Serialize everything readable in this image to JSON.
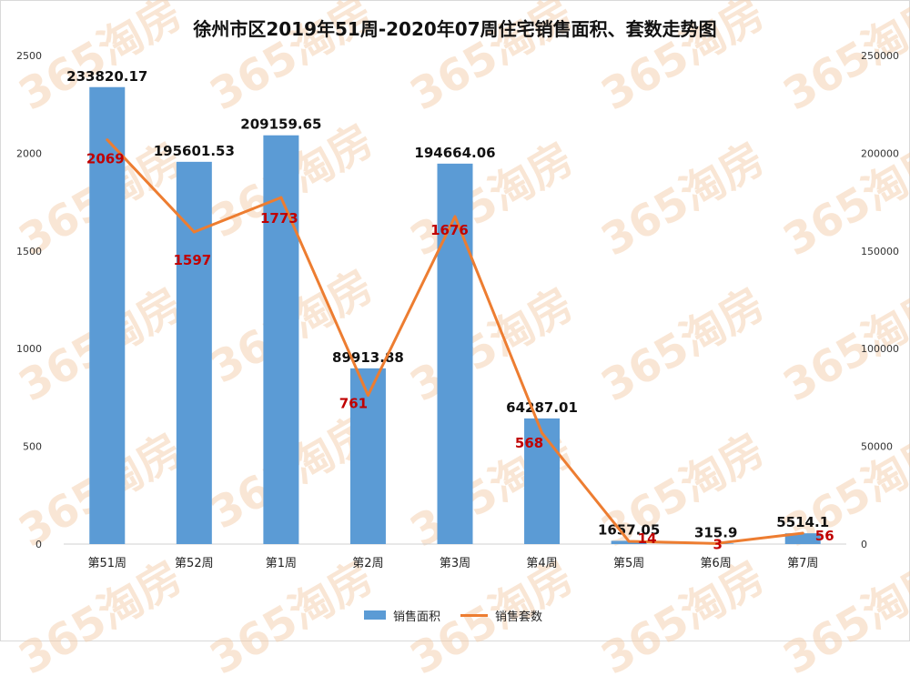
{
  "title": "徐州市区2019年51周-2020年07周住宅销售面积、套数走势图",
  "watermark": "365淘房",
  "colors": {
    "bar": "#5b9bd5",
    "line": "#ed7d31",
    "line_label": "#c00000"
  },
  "chart_data": {
    "type": "bar+line",
    "categories": [
      "第51周",
      "第52周",
      "第1周",
      "第2周",
      "第3周",
      "第4周",
      "第5周",
      "第6周",
      "第7周"
    ],
    "series": [
      {
        "name": "销售面积",
        "type": "bar",
        "axis": "right",
        "values": [
          233820.17,
          195601.53,
          209159.65,
          89913.88,
          194664.06,
          64287.01,
          1657.05,
          315.9,
          5514.1
        ],
        "labels": [
          "233820.17",
          "195601.53",
          "209159.65",
          "89913.88",
          "194664.06",
          "64287.01",
          "1657.05",
          "315.9",
          "5514.1"
        ]
      },
      {
        "name": "销售套数",
        "type": "line",
        "axis": "left",
        "values": [
          2069,
          1597,
          1773,
          761,
          1676,
          568,
          14,
          3,
          56
        ],
        "labels": [
          "2069",
          "1597",
          "1773",
          "761",
          "1676",
          "568",
          "14",
          "3",
          "56"
        ]
      }
    ],
    "y_left": {
      "min": 0,
      "max": 2500,
      "ticks": [
        "0",
        "500",
        "1000",
        "1500",
        "2000",
        "2500"
      ]
    },
    "y_right": {
      "min": 0,
      "max": 250000,
      "ticks": [
        "0",
        "50000",
        "100000",
        "150000",
        "200000",
        "250000"
      ]
    },
    "grid": false,
    "legend": "bottom"
  }
}
